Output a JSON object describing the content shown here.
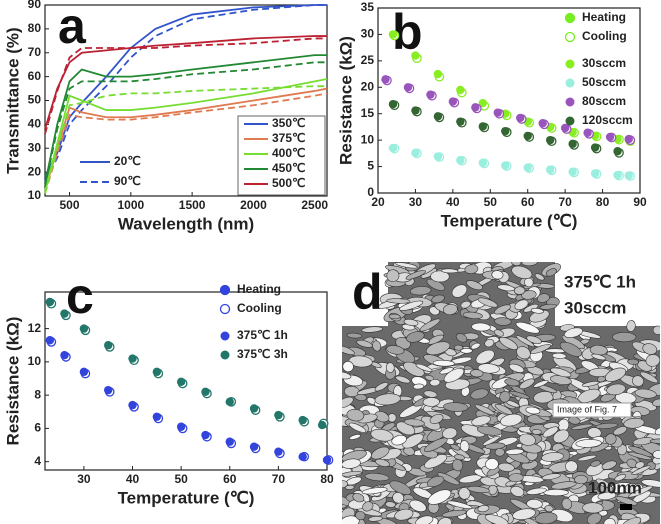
{
  "chart_data": [
    {
      "type": "line",
      "panel_label": "a",
      "xlabel": "Wavelength (nm)",
      "ylabel": "Transmittance (%)",
      "xlim": [
        300,
        2600
      ],
      "xticks": [
        500,
        1000,
        1500,
        2000,
        2500
      ],
      "ylim": [
        10,
        90
      ],
      "yticks": [
        10,
        20,
        30,
        40,
        50,
        60,
        70,
        80,
        90
      ],
      "line_styles": [
        {
          "name": "20℃",
          "dash": "solid"
        },
        {
          "name": "90℃",
          "dash": "dashed"
        }
      ],
      "x": [
        300,
        400,
        500,
        600,
        800,
        1000,
        1200,
        1500,
        2000,
        2500,
        2600
      ],
      "series": [
        {
          "name": "350℃",
          "color": "#3355cc",
          "values": [
            [
              18,
              28,
              43,
              49,
              60,
              72,
              80,
              86,
              89,
              90,
              90
            ],
            [
              16,
              26,
              40,
              46,
              56,
              68,
              77,
              84,
              88,
              90,
              90
            ]
          ]
        },
        {
          "name": "375℃",
          "color": "#e07a50",
          "values": [
            [
              12,
              30,
              47,
              45,
              43,
              43,
              44,
              46,
              50,
              54,
              55
            ],
            [
              11,
              28,
              44,
              43,
              42,
              42,
              43,
              45,
              48,
              52,
              53
            ]
          ]
        },
        {
          "name": "400℃",
          "color": "#77dd33",
          "values": [
            [
              12,
              32,
              52,
              50,
              46,
              46,
              47,
              49,
              53,
              58,
              59
            ],
            [
              11,
              30,
              48,
              49,
              52,
              53,
              53,
              54,
              55,
              56,
              56
            ]
          ]
        },
        {
          "name": "450℃",
          "color": "#228833",
          "values": [
            [
              15,
              40,
              58,
              63,
              60,
              60,
              61,
              63,
              66,
              69,
              69
            ],
            [
              14,
              38,
              55,
              58,
              58,
              58,
              59,
              61,
              63,
              66,
              66
            ]
          ]
        },
        {
          "name": "500℃",
          "color": "#bb2233",
          "values": [
            [
              38,
              55,
              66,
              70,
              71,
              72,
              73,
              74,
              76,
              77,
              77
            ],
            [
              36,
              54,
              68,
              72,
              72,
              72,
              72,
              73,
              74,
              76,
              76
            ]
          ]
        }
      ]
    },
    {
      "type": "scatter",
      "panel_label": "b",
      "xlabel": "Temperature (℃)",
      "ylabel": "Resistance (kΩ)",
      "xlim": [
        20,
        90
      ],
      "xticks": [
        20,
        30,
        40,
        50,
        60,
        70,
        80,
        90
      ],
      "ylim": [
        0,
        35
      ],
      "yticks": [
        0,
        5,
        10,
        15,
        20,
        25,
        30,
        35
      ],
      "marker_legend": [
        "Heating",
        "Cooling"
      ],
      "marker_legend_color": "#77ee22",
      "series": [
        {
          "name": "30sccm",
          "color": "#88ee22",
          "x": [
            24,
            30,
            36,
            42,
            48,
            54,
            60,
            66,
            72,
            78,
            84,
            87
          ],
          "heating": [
            30,
            26,
            22.5,
            19.5,
            17,
            15,
            13.5,
            12.5,
            11.5,
            10.8,
            10.2,
            10
          ],
          "cooling": [
            29.8,
            25.5,
            22,
            19,
            16.5,
            14.7,
            13.3,
            12.3,
            11.4,
            10.7,
            10.1,
            9.8
          ]
        },
        {
          "name": "50sccm",
          "color": "#99eedd",
          "x": [
            24,
            30,
            36,
            42,
            48,
            54,
            60,
            66,
            72,
            78,
            84,
            87
          ],
          "heating": [
            8.5,
            7.6,
            6.9,
            6.2,
            5.7,
            5.2,
            4.8,
            4.4,
            4,
            3.7,
            3.4,
            3.3
          ],
          "cooling": [
            8.4,
            7.5,
            6.8,
            6.1,
            5.6,
            5.1,
            4.7,
            4.3,
            3.9,
            3.6,
            3.3,
            3.2
          ]
        },
        {
          "name": "80sccm",
          "color": "#9955bb",
          "x": [
            22,
            28,
            34,
            40,
            46,
            52,
            58,
            64,
            70,
            76,
            82,
            87
          ],
          "heating": [
            21.5,
            20,
            18.6,
            17.3,
            16.2,
            15.2,
            14.2,
            13.2,
            12.3,
            11.4,
            10.6,
            10.2
          ],
          "cooling": [
            21.3,
            19.8,
            18.4,
            17.1,
            16,
            15,
            14,
            13,
            12.1,
            11.2,
            10.5,
            10
          ]
        },
        {
          "name": "120sccm",
          "color": "#336633",
          "x": [
            24,
            30,
            36,
            42,
            48,
            54,
            60,
            66,
            72,
            78,
            84
          ],
          "heating": [
            16.8,
            15.6,
            14.5,
            13.5,
            12.6,
            11.7,
            10.8,
            10,
            9.3,
            8.6,
            7.9
          ],
          "cooling": [
            16.6,
            15.4,
            14.3,
            13.3,
            12.4,
            11.5,
            10.6,
            9.8,
            9.1,
            8.4,
            7.6
          ]
        }
      ]
    },
    {
      "type": "scatter",
      "panel_label": "c",
      "xlabel": "Temperature (℃)",
      "ylabel": "Resistance (kΩ)",
      "xlim": [
        22,
        80
      ],
      "xticks": [
        30,
        40,
        50,
        60,
        70,
        80
      ],
      "ylim": [
        3.5,
        14.2
      ],
      "yticks": [
        4,
        6,
        8,
        10,
        12
      ],
      "marker_legend": [
        "Heating",
        "Cooling"
      ],
      "marker_legend_color": "#3344dd",
      "series": [
        {
          "name": "375℃ 1h",
          "color": "#3344dd",
          "x": [
            23,
            26,
            30,
            35,
            40,
            45,
            50,
            55,
            60,
            65,
            70,
            75,
            80
          ],
          "heating": [
            11.3,
            10.4,
            9.4,
            8.3,
            7.4,
            6.7,
            6.1,
            5.6,
            5.2,
            4.9,
            4.6,
            4.3,
            4.1
          ],
          "cooling": [
            11.2,
            10.3,
            9.3,
            8.2,
            7.3,
            6.6,
            6,
            5.5,
            5.1,
            4.8,
            4.5,
            4.3,
            4.1
          ]
        },
        {
          "name": "375℃ 3h",
          "color": "#22776a",
          "x": [
            23,
            26,
            30,
            35,
            40,
            45,
            50,
            55,
            60,
            65,
            70,
            75,
            79
          ],
          "heating": [
            13.6,
            12.9,
            12,
            11,
            10.2,
            9.4,
            8.8,
            8.2,
            7.6,
            7.2,
            6.8,
            6.5,
            6.2
          ],
          "cooling": [
            13.5,
            12.8,
            11.9,
            10.9,
            10.1,
            9.3,
            8.7,
            8.1,
            7.6,
            7.1,
            6.7,
            6.4,
            6.3
          ]
        }
      ]
    },
    {
      "type": "image",
      "panel_label": "d",
      "caption": [
        "375℃ 1h",
        "30sccm"
      ],
      "scale_bar": "100nm",
      "tooltip": "Image of Fig. 7"
    }
  ]
}
